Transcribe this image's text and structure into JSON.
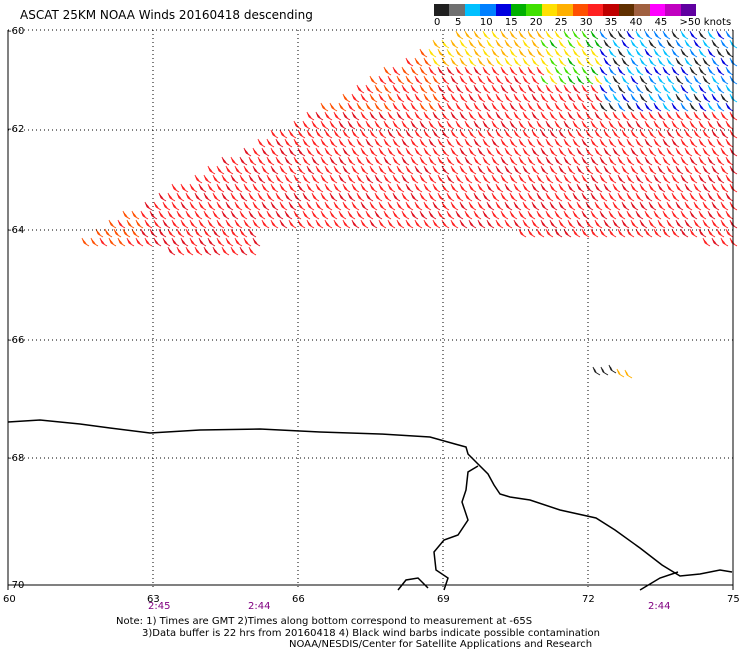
{
  "title": "ASCAT 25KM NOAA Winds 20160418 descending",
  "legend": {
    "colors": [
      "#202020",
      "#707070",
      "#00c0ff",
      "#0080ff",
      "#0000e0",
      "#00b000",
      "#40e000",
      "#ffe000",
      "#ffb000",
      "#ff5000",
      "#ff2020",
      "#c00000",
      "#603000",
      "#a06040",
      "#ff00ff",
      "#c000c0",
      "#6000a0"
    ],
    "labels": [
      "0",
      "5",
      "10",
      "15",
      "20",
      "25",
      "30",
      "35",
      "40",
      "45",
      ">50 knots"
    ]
  },
  "axes": {
    "lat_labels": [
      "-60",
      "-62",
      "-64",
      "-66",
      "-68",
      "-70"
    ],
    "lon_labels": [
      "60",
      "63",
      "66",
      "69",
      "72",
      "75"
    ]
  },
  "time_labels": [
    "2:45",
    "2:44",
    "2:44"
  ],
  "notes": {
    "line1": "Note: 1) Times are GMT 2)Times along bottom correspond to measurement at -65S",
    "line2": "3)Data buffer is 22 hrs from 20160418 4) Black wind barbs indicate possible contamination",
    "line3": "NOAA/NESDIS/Center for Satellite Applications and Research"
  },
  "wind_swath_colors": [
    "#ff2020",
    "#e01020",
    "#ff5000",
    "#ffb000",
    "#ffe000",
    "#40e000",
    "#00b000",
    "#0000e0",
    "#0080ff",
    "#00c0ff",
    "#202020"
  ]
}
